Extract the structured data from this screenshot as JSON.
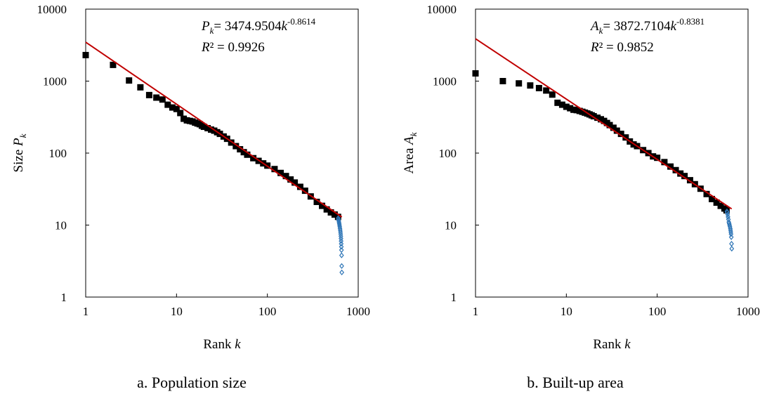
{
  "chart_data": [
    {
      "type": "scatter",
      "caption": "a. Population size",
      "xlabel": "Rank",
      "xlabel_var": "k",
      "ylabel": "Size",
      "ylabel_var": "P",
      "ylabel_sub": "k",
      "xscale": "log",
      "yscale": "log",
      "xlim": [
        1,
        1000
      ],
      "ylim": [
        1,
        10000
      ],
      "xticks": [
        "1",
        "10",
        "100",
        "1000"
      ],
      "yticks": [
        "1",
        "10",
        "100",
        "1000",
        "10000"
      ],
      "grid": false,
      "legend": "none",
      "equation": {
        "var": "P",
        "sub": "k",
        "coef": "= 3474.9504",
        "k": "k",
        "exp": "-0.8614",
        "r2_label": "R",
        "r2_rest": "² = 0.9926"
      },
      "fit": {
        "a": 3474.9504,
        "b": -0.8614,
        "x_range": [
          1,
          660
        ]
      },
      "colors": {
        "points": "#000000",
        "tail": "#2e75b6",
        "fit": "#c00000"
      },
      "series": [
        {
          "marker": "square",
          "x": [
            1,
            2,
            3,
            4,
            5,
            6,
            7,
            8,
            9,
            10,
            11,
            12,
            13,
            14,
            15,
            16,
            17,
            18,
            19,
            20,
            22,
            24,
            26,
            28,
            30,
            33,
            36,
            40,
            45,
            50,
            55,
            60,
            70,
            80,
            90,
            100,
            120,
            140,
            160,
            180,
            200,
            230,
            260,
            300,
            350,
            400,
            450,
            500,
            550,
            600
          ],
          "y": [
            2300,
            1680,
            1020,
            820,
            640,
            590,
            555,
            470,
            430,
            410,
            360,
            300,
            285,
            280,
            275,
            265,
            258,
            252,
            240,
            232,
            222,
            212,
            205,
            195,
            185,
            170,
            158,
            140,
            125,
            113,
            103,
            95,
            85,
            78,
            72,
            67,
            60,
            53,
            48,
            43,
            39,
            34,
            30,
            25,
            21,
            18.5,
            16.5,
            15,
            14,
            13
          ]
        },
        {
          "marker": "diamond-open",
          "x": [
            602,
            606,
            610,
            614,
            618,
            622,
            626,
            630,
            634,
            638,
            641,
            644,
            646,
            648,
            650,
            652,
            654,
            656,
            658,
            660
          ],
          "y": [
            12.5,
            12,
            11.5,
            11,
            10.5,
            10,
            9.5,
            9,
            8.5,
            8,
            7.5,
            7,
            6.5,
            6,
            5.5,
            5,
            4.5,
            3.8,
            2.7,
            2.2
          ]
        }
      ]
    },
    {
      "type": "scatter",
      "caption": "b. Built-up area",
      "xlabel": "Rank",
      "xlabel_var": "k",
      "ylabel": "Area",
      "ylabel_var": "A",
      "ylabel_sub": "k",
      "xscale": "log",
      "yscale": "log",
      "xlim": [
        1,
        1000
      ],
      "ylim": [
        1,
        10000
      ],
      "xticks": [
        "1",
        "10",
        "100",
        "1000"
      ],
      "yticks": [
        "1",
        "10",
        "100",
        "1000",
        "10000"
      ],
      "grid": false,
      "legend": "none",
      "equation": {
        "var": "A",
        "sub": "k",
        "coef": "= 3872.7104",
        "k": "k",
        "exp": "-0.8381",
        "r2_label": "R",
        "r2_rest": "² = 0.9852"
      },
      "fit": {
        "a": 3872.7104,
        "b": -0.8381,
        "x_range": [
          1,
          660
        ]
      },
      "colors": {
        "points": "#000000",
        "tail": "#2e75b6",
        "fit": "#c00000"
      },
      "series": [
        {
          "marker": "square",
          "x": [
            1,
            2,
            3,
            4,
            5,
            6,
            7,
            8,
            9,
            10,
            11,
            12,
            13,
            14,
            15,
            16,
            17,
            18,
            19,
            20,
            22,
            24,
            26,
            28,
            30,
            33,
            36,
            40,
            45,
            50,
            55,
            60,
            70,
            80,
            90,
            100,
            120,
            140,
            160,
            180,
            200,
            230,
            260,
            300,
            350,
            400,
            450,
            500,
            550,
            580
          ],
          "y": [
            1280,
            1000,
            930,
            870,
            800,
            740,
            650,
            500,
            470,
            440,
            420,
            400,
            395,
            385,
            375,
            365,
            355,
            345,
            335,
            325,
            310,
            295,
            280,
            262,
            245,
            225,
            205,
            185,
            165,
            145,
            132,
            125,
            110,
            100,
            90,
            86,
            75,
            65,
            58,
            52,
            48,
            42,
            37,
            32,
            27,
            23,
            20.5,
            18.5,
            17,
            16
          ]
        },
        {
          "marker": "diamond-open",
          "x": [
            585,
            590,
            596,
            602,
            608,
            614,
            620,
            626,
            632,
            638,
            642,
            646,
            650,
            654,
            658,
            662
          ],
          "y": [
            15.5,
            15,
            14,
            13,
            12,
            11,
            10.5,
            10,
            9.5,
            9,
            8.5,
            8,
            7.5,
            6.8,
            5.5,
            4.7
          ]
        }
      ]
    }
  ]
}
